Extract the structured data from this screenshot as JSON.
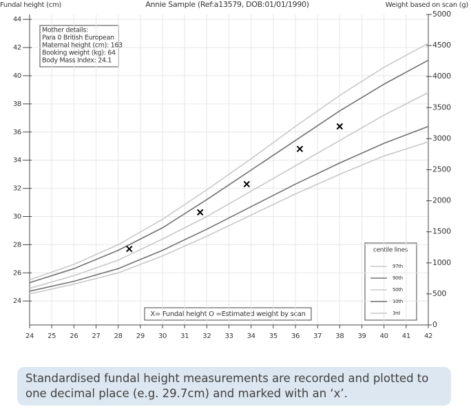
{
  "chart_data": {
    "type": "line",
    "title": "Annie Sample (Ref:a13579, DOB:01/01/1990)",
    "ylabel": "Fundal height (cm)",
    "y2label": "Weight based on scan (g)",
    "x": [
      24,
      26,
      28,
      30,
      32,
      34,
      36,
      38,
      40,
      42
    ],
    "xlim": [
      24,
      42
    ],
    "xticks": [
      24,
      25,
      26,
      27,
      28,
      29,
      30,
      31,
      32,
      33,
      34,
      35,
      36,
      37,
      38,
      39,
      40,
      41,
      42
    ],
    "ylim": [
      22.3,
      44.35
    ],
    "yticks": [
      24,
      26,
      28,
      30,
      32,
      34,
      36,
      38,
      40,
      42,
      44
    ],
    "y2lim": [
      0,
      5000
    ],
    "y2ticks": [
      0,
      500,
      1000,
      1500,
      2000,
      2500,
      3000,
      3500,
      4000,
      4500,
      5000
    ],
    "grid": true,
    "legend_title": "centile lines",
    "series": [
      {
        "name": "97th",
        "color": "#c8c8c8",
        "values": [
          25.5,
          26.6,
          28.0,
          29.8,
          31.9,
          34.1,
          36.4,
          38.6,
          40.6,
          42.3
        ]
      },
      {
        "name": "90th",
        "color": "#707070",
        "values": [
          25.3,
          26.3,
          27.6,
          29.2,
          31.2,
          33.3,
          35.4,
          37.5,
          39.4,
          41.1
        ]
      },
      {
        "name": "50th",
        "color": "#c8c8c8",
        "values": [
          24.9,
          25.8,
          26.9,
          28.4,
          30.0,
          31.8,
          33.6,
          35.4,
          37.2,
          38.8
        ]
      },
      {
        "name": "10th",
        "color": "#707070",
        "values": [
          24.7,
          25.4,
          26.3,
          27.6,
          29.1,
          30.7,
          32.3,
          33.8,
          35.2,
          36.4
        ]
      },
      {
        "name": "3rd",
        "color": "#c8c8c8",
        "values": [
          24.5,
          25.2,
          26.0,
          27.2,
          28.6,
          30.1,
          31.6,
          33.0,
          34.3,
          35.3
        ]
      }
    ],
    "measurements": {
      "x": [
        28.5,
        31.7,
        33.8,
        36.2,
        38.0
      ],
      "values": [
        27.7,
        30.3,
        32.3,
        34.8,
        36.4
      ],
      "color": "#000000"
    },
    "key_text": "X= Fundal height   O =Estimated weight by scan",
    "mother_details": [
      "Mother details:",
      "Para 0  British European",
      "Maternal height (cm): 163",
      "Booking weight (kg): 64",
      "Body Mass Index: 24.1"
    ]
  },
  "caption": "Standardised fundal height measurements are recorded and plotted to one decimal place (e.g. 29.7cm) and marked with an ‘x’."
}
